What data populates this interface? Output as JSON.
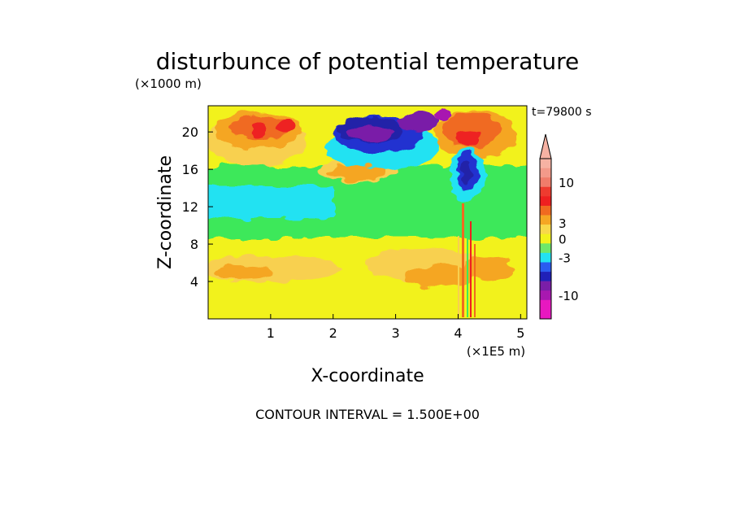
{
  "chart_data": {
    "type": "heatmap",
    "title": "disturbunce of potential temperature",
    "xlabel": "X-coordinate",
    "ylabel": "Z-coordinate",
    "x_unit": "(×1E5 m)",
    "z_unit": "(×1000 m)",
    "time_label": "t=79800 s",
    "footer": "CONTOUR INTERVAL = 1.500E+00",
    "xlim": [
      0,
      5.1
    ],
    "ylim": [
      0,
      22.8
    ],
    "x_ticks": [
      {
        "value": 1,
        "label": "1"
      },
      {
        "value": 2,
        "label": "2"
      },
      {
        "value": 3,
        "label": "3"
      },
      {
        "value": 4,
        "label": "4"
      },
      {
        "value": 5,
        "label": "5"
      }
    ],
    "y_ticks": [
      {
        "value": 4,
        "label": "4"
      },
      {
        "value": 8,
        "label": "8"
      },
      {
        "value": 12,
        "label": "12"
      },
      {
        "value": 16,
        "label": "16"
      },
      {
        "value": 20,
        "label": "20"
      }
    ],
    "colorbar": {
      "interval": 1.5,
      "levels": [
        {
          "color": "#f6b2a3"
        },
        {
          "color": "#f39a8a"
        },
        {
          "color": "#f07c6a"
        },
        {
          "color": "#ee3b2f"
        },
        {
          "color": "#ee2020"
        },
        {
          "color": "#f06a20"
        },
        {
          "color": "#f5a623"
        },
        {
          "color": "#f8d84a"
        },
        {
          "color": "#f2f21c"
        },
        {
          "color": "#6ee86a"
        },
        {
          "color": "#22e2f2"
        },
        {
          "color": "#2a5cf0"
        },
        {
          "color": "#2020b8"
        },
        {
          "color": "#7a1ea8"
        },
        {
          "color": "#a818b0"
        },
        {
          "color": "#e818c0"
        },
        {
          "color": "#e818c0"
        }
      ],
      "labels": [
        {
          "label": "10",
          "level_index": 2.5
        },
        {
          "label": "3",
          "level_index": 6.8
        },
        {
          "label": "0",
          "level_index": 8.5
        },
        {
          "label": "-3",
          "level_index": 10.5
        },
        {
          "label": "-10",
          "level_index": 14.5
        }
      ]
    },
    "field_palette": {
      "yellow": "#f2f21c",
      "green": "#3ee85a",
      "cyan": "#22e2f2",
      "gold": "#f8d050",
      "orange": "#f5a623",
      "red_orange": "#f06a20",
      "red": "#ee2020",
      "blue": "#2030d0",
      "navy": "#2020a8",
      "purple": "#7a1ea8",
      "magenta": "#a818b0"
    }
  }
}
